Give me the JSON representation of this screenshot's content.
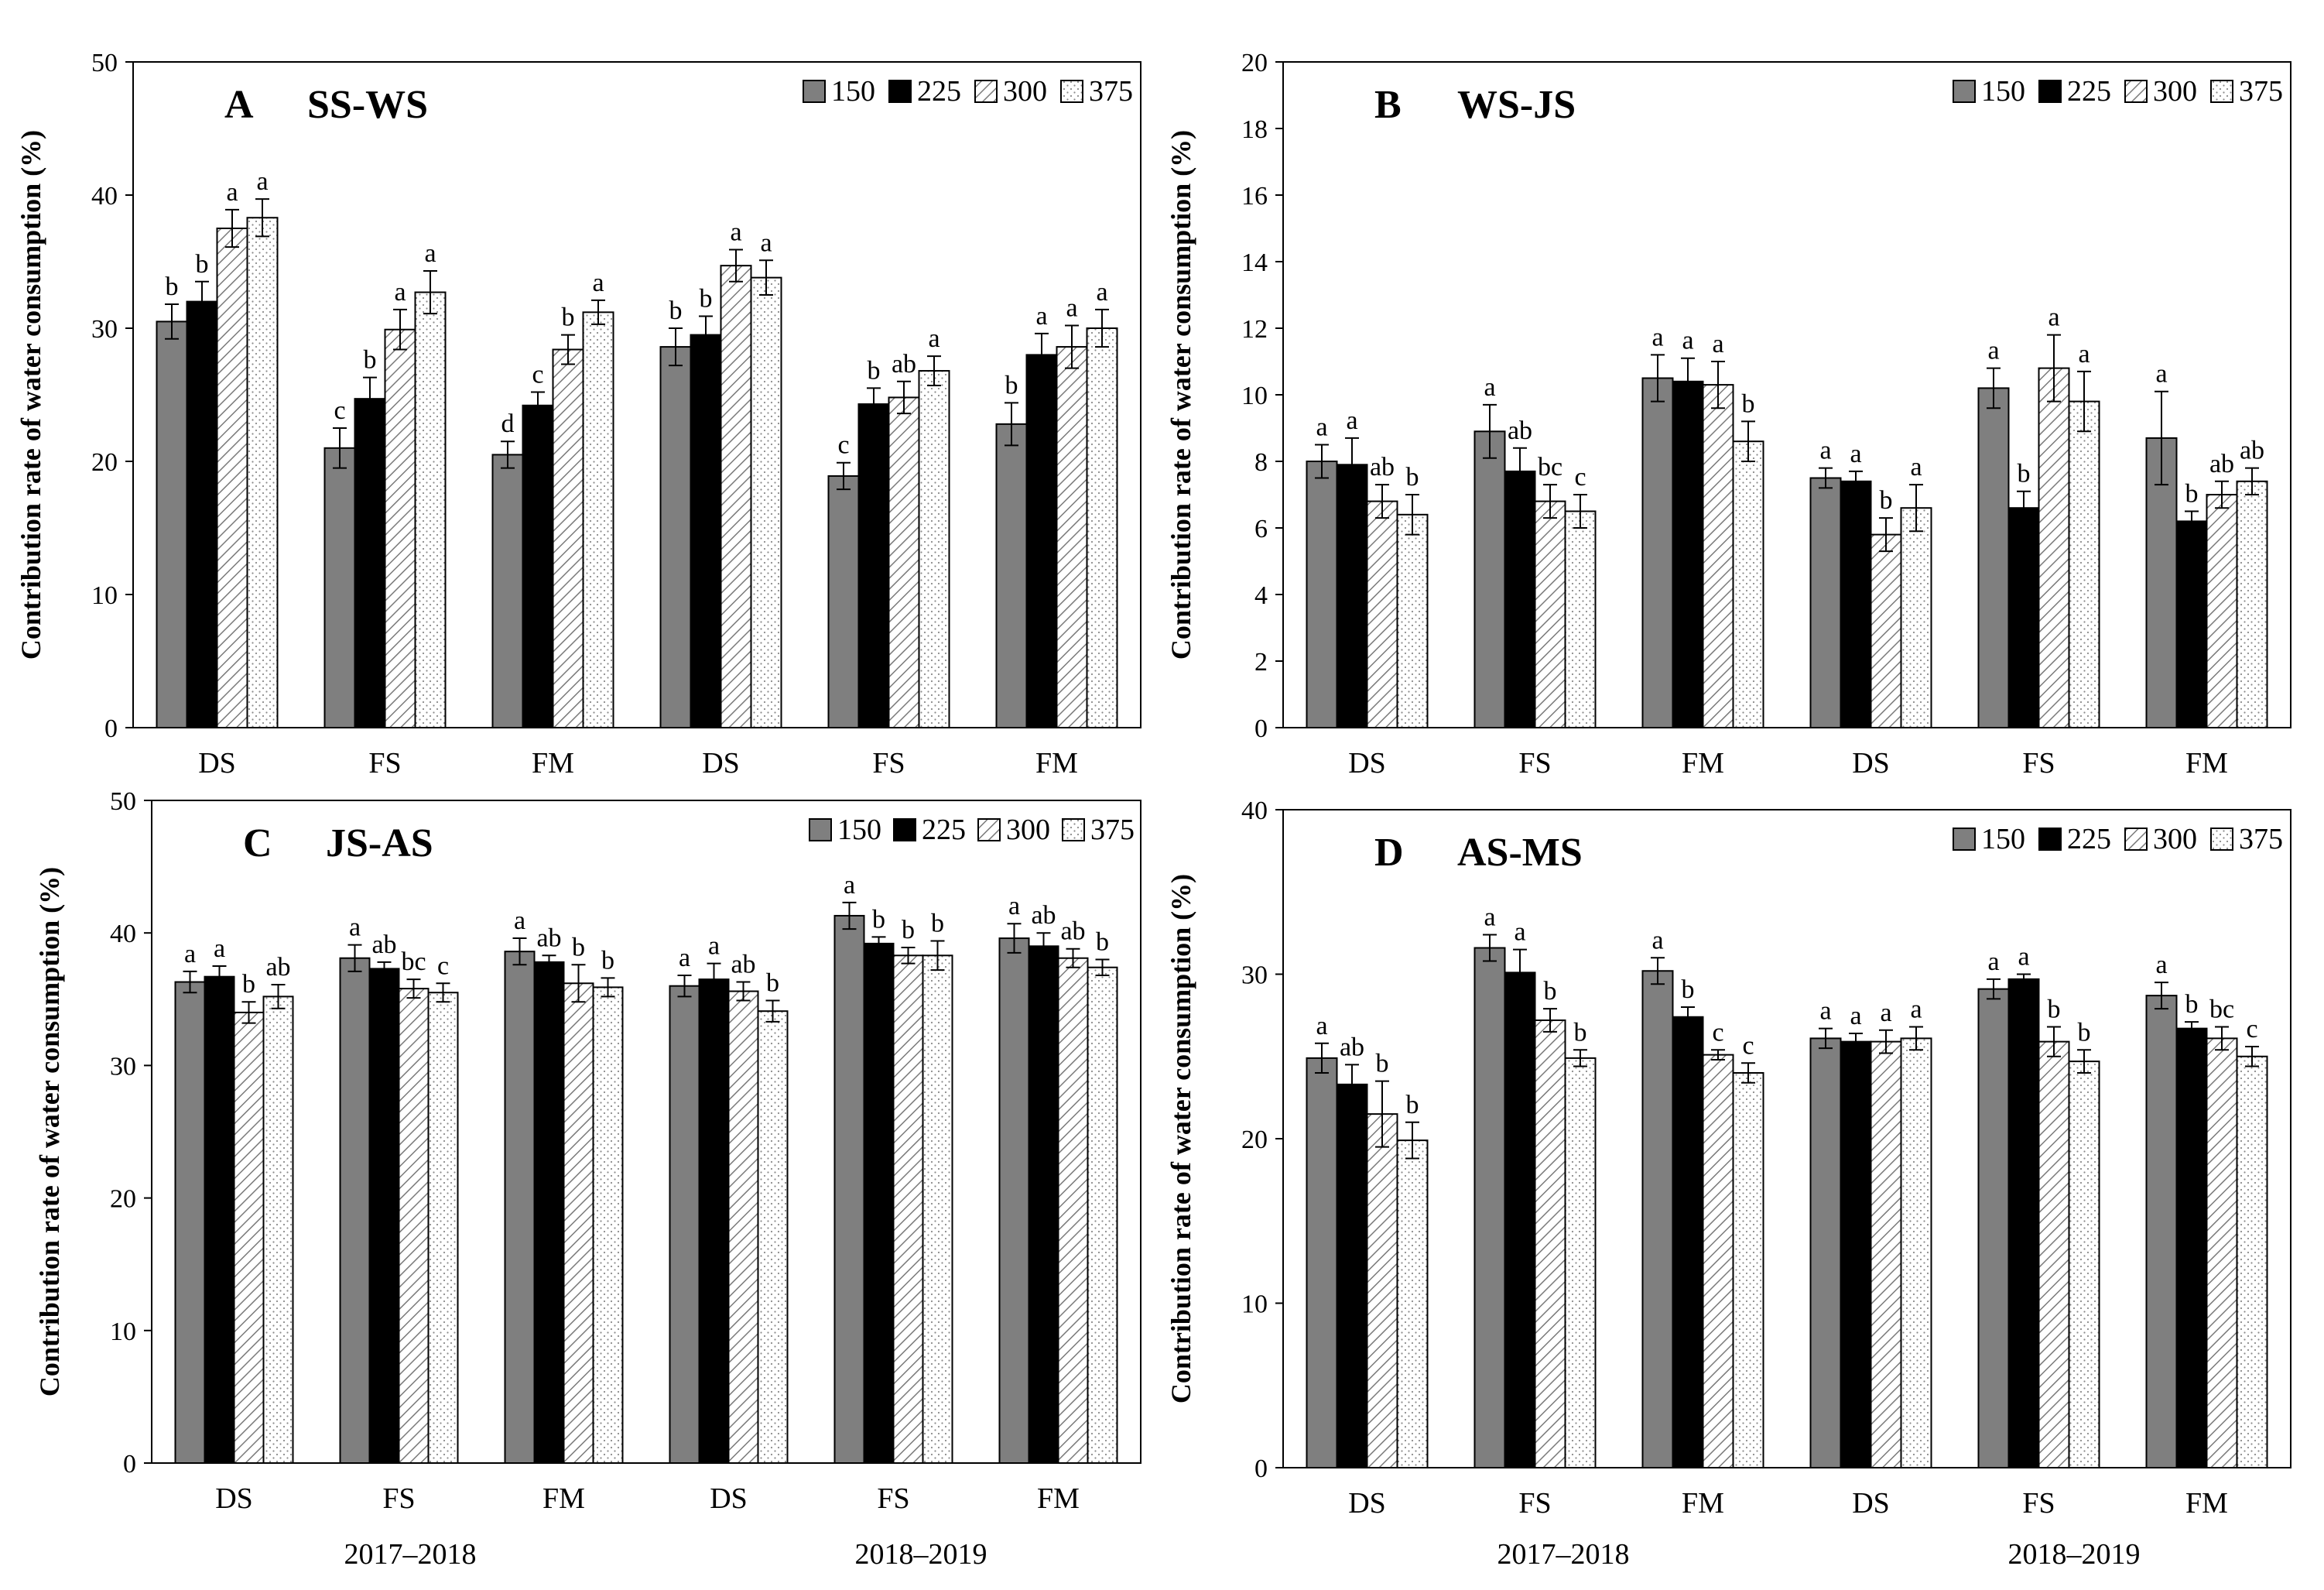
{
  "figure": {
    "legend": [
      "150",
      "225",
      "300",
      "375"
    ],
    "ylabel": "Contribution  rate of water consumption  (%)",
    "years": [
      "2017–2018",
      "2018–2019"
    ],
    "colors": {
      "s150": "#7f7f7f",
      "s225": "#000000",
      "s300": "#ffffff",
      "s375": "#ffffff"
    }
  },
  "chart_data": [
    {
      "panel": "A",
      "title": "SS-WS",
      "type": "bar",
      "categories": [
        "DS",
        "FS",
        "FM",
        "DS",
        "FS",
        "FM"
      ],
      "ylim": [
        0,
        50
      ],
      "ytick_step": 10,
      "yticks": [
        "0",
        "10",
        "20",
        "30",
        "40",
        "50"
      ],
      "series": [
        {
          "name": "150",
          "values": [
            30.5,
            21.0,
            20.5,
            28.6,
            18.9,
            22.8
          ],
          "errors": [
            1.3,
            1.5,
            1.0,
            1.4,
            1.0,
            1.6
          ],
          "letters": [
            "b",
            "c",
            "d",
            "b",
            "c",
            "b"
          ]
        },
        {
          "name": "225",
          "values": [
            32.0,
            24.7,
            24.2,
            29.5,
            24.3,
            28.0
          ],
          "errors": [
            1.5,
            1.6,
            1.0,
            1.4,
            1.2,
            1.6
          ],
          "letters": [
            "b",
            "b",
            "c",
            "b",
            "b",
            "a"
          ]
        },
        {
          "name": "300",
          "values": [
            37.5,
            29.9,
            28.4,
            34.7,
            24.8,
            28.6
          ],
          "errors": [
            1.4,
            1.5,
            1.1,
            1.2,
            1.2,
            1.6
          ],
          "letters": [
            "a",
            "a",
            "b",
            "a",
            "ab",
            "a"
          ]
        },
        {
          "name": "375",
          "values": [
            38.3,
            32.7,
            31.2,
            33.8,
            26.8,
            30.0
          ],
          "errors": [
            1.4,
            1.6,
            0.9,
            1.3,
            1.1,
            1.4
          ],
          "letters": [
            "a",
            "a",
            "a",
            "a",
            "a",
            "a"
          ]
        }
      ]
    },
    {
      "panel": "B",
      "title": "WS-JS",
      "type": "bar",
      "categories": [
        "DS",
        "FS",
        "FM",
        "DS",
        "FS",
        "FM"
      ],
      "ylim": [
        0,
        20
      ],
      "ytick_step": 2,
      "yticks": [
        "0",
        "2",
        "4",
        "6",
        "8",
        "10",
        "12",
        "14",
        "16",
        "18",
        "20"
      ],
      "series": [
        {
          "name": "150",
          "values": [
            8.0,
            8.9,
            10.5,
            7.5,
            10.2,
            8.7
          ],
          "errors": [
            0.5,
            0.8,
            0.7,
            0.3,
            0.6,
            1.4
          ],
          "letters": [
            "a",
            "a",
            "a",
            "a",
            "a",
            "a"
          ]
        },
        {
          "name": "225",
          "values": [
            7.9,
            7.7,
            10.4,
            7.4,
            6.6,
            6.2
          ],
          "errors": [
            0.8,
            0.7,
            0.7,
            0.3,
            0.5,
            0.3
          ],
          "letters": [
            "a",
            "ab",
            "a",
            "a",
            "b",
            "b"
          ]
        },
        {
          "name": "300",
          "values": [
            6.8,
            6.8,
            10.3,
            5.8,
            10.8,
            7.0
          ],
          "errors": [
            0.5,
            0.5,
            0.7,
            0.5,
            1.0,
            0.4
          ],
          "letters": [
            "ab",
            "bc",
            "a",
            "b",
            "a",
            "ab"
          ]
        },
        {
          "name": "375",
          "values": [
            6.4,
            6.5,
            8.6,
            6.6,
            9.8,
            7.4
          ],
          "errors": [
            0.6,
            0.5,
            0.6,
            0.7,
            0.9,
            0.4
          ],
          "letters": [
            "b",
            "c",
            "b",
            "a",
            "a",
            "ab"
          ]
        }
      ]
    },
    {
      "panel": "C",
      "title": "JS-AS",
      "type": "bar",
      "categories": [
        "DS",
        "FS",
        "FM",
        "DS",
        "FS",
        "FM"
      ],
      "ylim": [
        0,
        50
      ],
      "ytick_step": 10,
      "yticks": [
        "0",
        "10",
        "20",
        "30",
        "40",
        "50"
      ],
      "series": [
        {
          "name": "150",
          "values": [
            36.3,
            38.1,
            38.6,
            36.0,
            41.3,
            39.6
          ],
          "errors": [
            0.8,
            1.0,
            1.0,
            0.8,
            1.0,
            1.1
          ],
          "letters": [
            "a",
            "a",
            "a",
            "a",
            "a",
            "a"
          ]
        },
        {
          "name": "225",
          "values": [
            36.7,
            37.3,
            37.8,
            36.5,
            39.2,
            39.0
          ],
          "errors": [
            0.8,
            0.5,
            0.5,
            1.2,
            0.5,
            1.0
          ],
          "letters": [
            "a",
            "ab",
            "ab",
            "a",
            "b",
            "ab"
          ]
        },
        {
          "name": "300",
          "values": [
            34.0,
            35.8,
            36.2,
            35.6,
            38.3,
            38.1
          ],
          "errors": [
            0.8,
            0.7,
            1.4,
            0.7,
            0.6,
            0.7
          ],
          "letters": [
            "b",
            "bc",
            "b",
            "ab",
            "b",
            "ab"
          ]
        },
        {
          "name": "375",
          "values": [
            35.2,
            35.5,
            35.9,
            34.1,
            38.3,
            37.4
          ],
          "errors": [
            0.9,
            0.7,
            0.7,
            0.8,
            1.1,
            0.6
          ],
          "letters": [
            "ab",
            "c",
            "b",
            "b",
            "b",
            "b"
          ]
        }
      ]
    },
    {
      "panel": "D",
      "title": "AS-MS",
      "type": "bar",
      "categories": [
        "DS",
        "FS",
        "FM",
        "DS",
        "FS",
        "FM"
      ],
      "ylim": [
        0,
        40
      ],
      "ytick_step": 10,
      "yticks": [
        "0",
        "10",
        "20",
        "30",
        "40"
      ],
      "series": [
        {
          "name": "150",
          "values": [
            24.9,
            31.6,
            30.2,
            26.1,
            29.1,
            28.7
          ],
          "errors": [
            0.9,
            0.8,
            0.8,
            0.6,
            0.6,
            0.8
          ],
          "letters": [
            "a",
            "a",
            "a",
            "a",
            "a",
            "a"
          ]
        },
        {
          "name": "225",
          "values": [
            23.3,
            30.1,
            27.4,
            25.9,
            29.7,
            26.7
          ],
          "errors": [
            1.2,
            1.4,
            0.6,
            0.5,
            0.3,
            0.4
          ],
          "letters": [
            "ab",
            "a",
            "b",
            "a",
            "a",
            "b"
          ]
        },
        {
          "name": "300",
          "values": [
            21.5,
            27.2,
            25.1,
            25.9,
            25.9,
            26.1
          ],
          "errors": [
            2.0,
            0.7,
            0.3,
            0.7,
            0.9,
            0.7
          ],
          "letters": [
            "b",
            "b",
            "c",
            "a",
            "b",
            "bc"
          ]
        },
        {
          "name": "375",
          "values": [
            19.9,
            24.9,
            24.0,
            26.1,
            24.7,
            25.0
          ],
          "errors": [
            1.1,
            0.5,
            0.6,
            0.7,
            0.7,
            0.6
          ],
          "letters": [
            "b",
            "b",
            "c",
            "a",
            "b",
            "c"
          ]
        }
      ]
    }
  ]
}
